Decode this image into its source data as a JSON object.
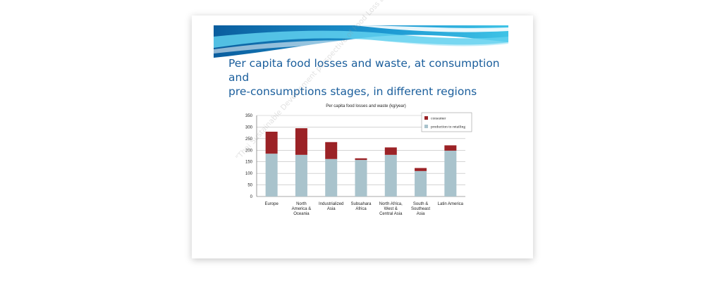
{
  "slide": {
    "title_line1": "Per capita food losses and waste, at consumption and",
    "title_line2": "pre-consumptions stages, in different regions",
    "watermark": "\"Thai Sustainable Development perspective of Food Loss and Waste\""
  },
  "colors": {
    "consumer": "#9b2226",
    "production": "#a9c3cc",
    "title": "#1a5e9c",
    "banner_dark": "#0a5d9e",
    "banner_light": "#3fc3e6"
  },
  "chart_data": {
    "type": "bar",
    "stacked": true,
    "title": "Per capita food losses and waste (kg/year)",
    "categories": [
      [
        "Europe"
      ],
      [
        "North",
        "America &",
        "Oceania"
      ],
      [
        "Industrialized",
        "Asia"
      ],
      [
        "Subsahara",
        "Africa"
      ],
      [
        "North Africa,",
        "West &",
        "Central Asia"
      ],
      [
        "South &",
        "Southeast",
        "Asia"
      ],
      [
        "Latin America"
      ]
    ],
    "series": [
      {
        "name": "production to retailing",
        "values": [
          185,
          180,
          162,
          158,
          180,
          110,
          198
        ]
      },
      {
        "name": "consumer",
        "values": [
          95,
          115,
          73,
          7,
          32,
          13,
          23
        ]
      }
    ],
    "ylim": [
      0,
      350
    ],
    "yticks": [
      0,
      50,
      100,
      150,
      200,
      250,
      300,
      350
    ],
    "grid": true,
    "legend_position": "top-right"
  }
}
